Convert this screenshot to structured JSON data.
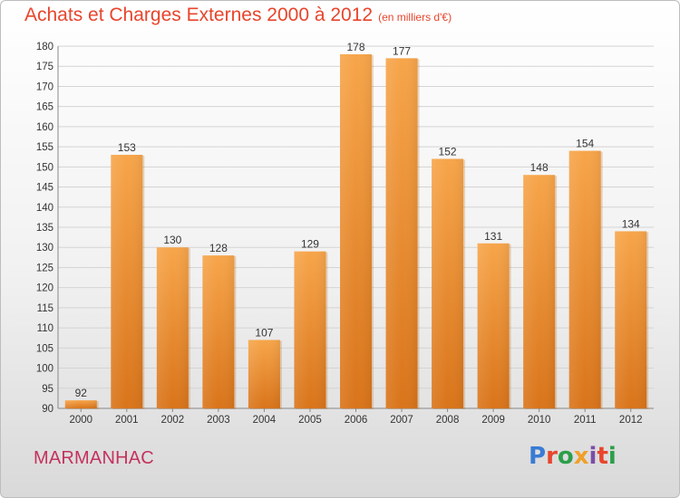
{
  "title": "Achats et Charges Externes 2000 à 2012",
  "subtitle": "(en milliers d'€)",
  "commune": "MARMANHAC",
  "brand": {
    "text": "Proxiti",
    "colors": [
      "#3a7bd5",
      "#e8452c",
      "#2c9e4a",
      "#f0a02a",
      "#7b4fa8",
      "#e8452c",
      "#2c9e4a"
    ]
  },
  "colors": {
    "bar_light": "#f7a54a",
    "bar_dark": "#d9741a",
    "title": "#e8452c",
    "commune": "#c4325e"
  },
  "chart_data": {
    "type": "bar",
    "title": "Achats et Charges Externes 2000 à 2012",
    "subtitle": "(en milliers d'€)",
    "categories": [
      "2000",
      "2001",
      "2002",
      "2003",
      "2004",
      "2005",
      "2006",
      "2007",
      "2008",
      "2009",
      "2010",
      "2011",
      "2012"
    ],
    "values": [
      92,
      153,
      130,
      128,
      107,
      129,
      178,
      177,
      152,
      131,
      148,
      154,
      134
    ],
    "ylim": [
      90,
      180
    ],
    "yticks": [
      90,
      95,
      100,
      105,
      110,
      115,
      120,
      125,
      130,
      135,
      140,
      145,
      150,
      155,
      160,
      165,
      170,
      175,
      180
    ],
    "grid": true,
    "data_labels": true
  }
}
